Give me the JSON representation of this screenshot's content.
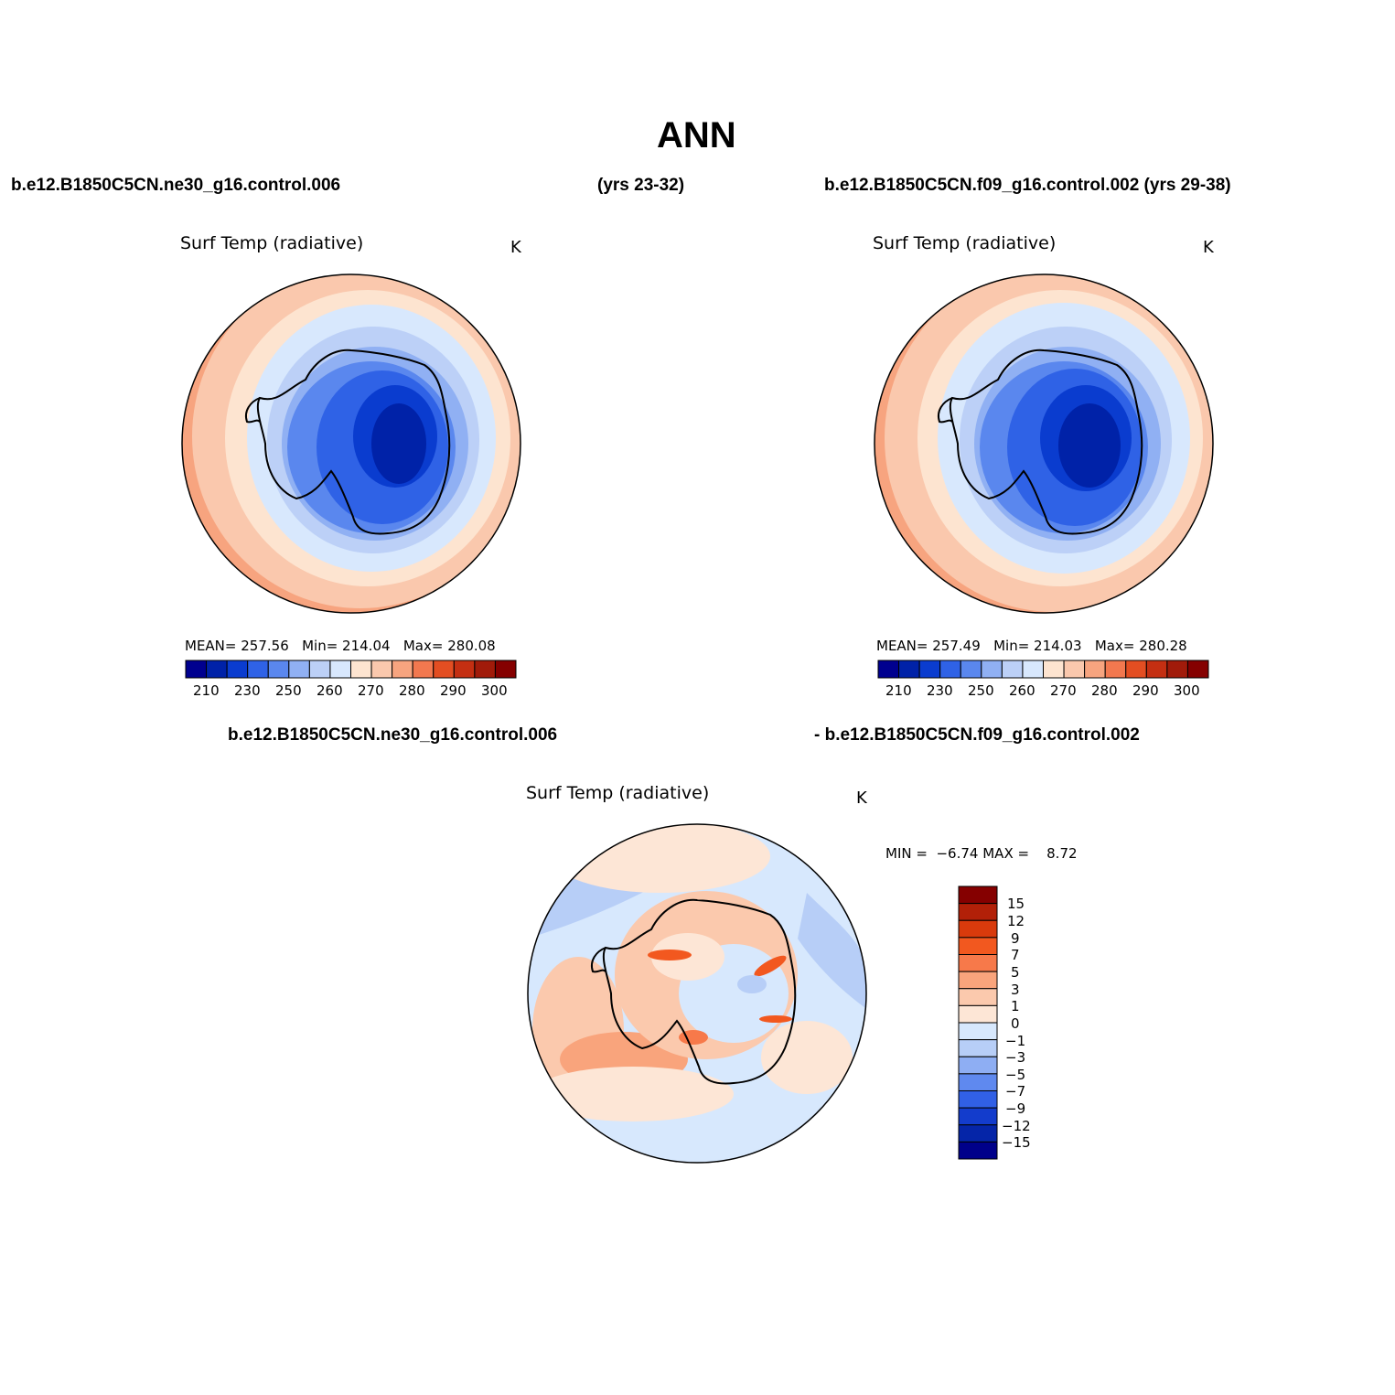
{
  "main_title": "ANN",
  "case_header": {
    "left": "b.e12.B1850C5CN.ne30_g16.control.006",
    "middle": "(yrs 23-32)",
    "right": "b.e12.B1850C5CN.f09_g16.control.002 (yrs 29-38)"
  },
  "diff_header": {
    "left": "b.e12.B1850C5CN.ne30_g16.control.006",
    "right": "- b.e12.B1850C5CN.f09_g16.control.002"
  },
  "panels": [
    {
      "variable": "Surf Temp (radiative)",
      "units": "K",
      "stats": {
        "mean_label": "MEAN=",
        "mean": "257.56",
        "min_label": "Min=",
        "min": "214.04",
        "max_label": "Max=",
        "max": "280.08"
      },
      "colorbar_ticks": [
        "210",
        "230",
        "250",
        "260",
        "270",
        "280",
        "290",
        "300"
      ]
    },
    {
      "variable": "Surf Temp (radiative)",
      "units": "K",
      "stats": {
        "mean_label": "MEAN=",
        "mean": "257.49",
        "min_label": "Min=",
        "min": "214.03",
        "max_label": "Max=",
        "max": "280.28"
      },
      "colorbar_ticks": [
        "210",
        "230",
        "250",
        "260",
        "270",
        "280",
        "290",
        "300"
      ]
    }
  ],
  "diff_panel": {
    "variable": "Surf Temp (radiative)",
    "units": "K",
    "min_label": "MIN =",
    "min": "−6.74",
    "max_label": "MAX =",
    "max": "8.72",
    "colorbar_ticks": [
      "15",
      "12",
      "9",
      "7",
      "5",
      "3",
      "1",
      "0",
      "−1",
      "−3",
      "−5",
      "−7",
      "−9",
      "−12",
      "−15"
    ]
  },
  "colors": {
    "abs_scale": [
      "#00008f",
      "#0022a8",
      "#0a3ccf",
      "#2f62e6",
      "#5a87ee",
      "#90b0f3",
      "#bcd0f7",
      "#d8e8fd",
      "#fde4d0",
      "#fac8ad",
      "#f7a47f",
      "#f2784f",
      "#e34e22",
      "#c42f12",
      "#a11b0a",
      "#850000"
    ],
    "diff_scale": [
      "#850000",
      "#b22008",
      "#d93a0c",
      "#f2581f",
      "#f7794a",
      "#f9a47c",
      "#fbc9ad",
      "#fde6d6",
      "#d7e8fd",
      "#b7cef7",
      "#8eaef3",
      "#5f89ef",
      "#3160e6",
      "#133ccc",
      "#0525a8",
      "#00008a"
    ],
    "coastline": "#000000"
  }
}
